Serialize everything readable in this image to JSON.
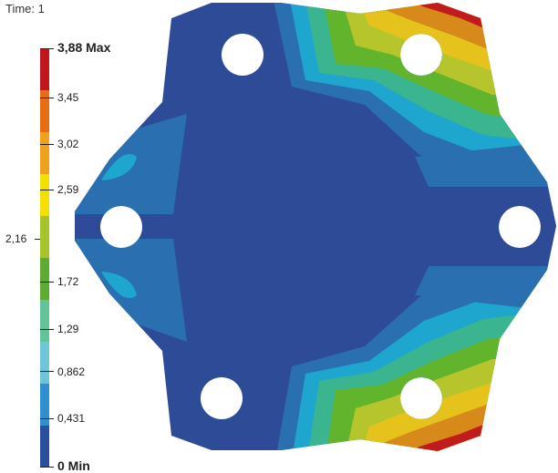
{
  "header": {
    "time_label": "Time: 1"
  },
  "legend": {
    "max_label": "3,88 Max",
    "min_label": "0 Min",
    "mid_label": "2,16",
    "levels": [
      "3,45",
      "3,02",
      "2,59",
      "1,72",
      "1,29",
      "0,862",
      "0,431"
    ],
    "colors": [
      "#c1161d",
      "#e86d12",
      "#f0a11a",
      "#f2e000",
      "#a7c42a",
      "#5eab34",
      "#62c29a",
      "#6ec5d6",
      "#2f8fd0",
      "#2b4e9e"
    ]
  },
  "part": {
    "colors": {
      "dark_blue": "#2e4b98",
      "mid_blue": "#2a6fb0",
      "cyan": "#1ea6cf",
      "teal": "#3bb58f",
      "green": "#62b42d",
      "yellow_green": "#b7c52d",
      "yellow": "#e6c21d",
      "orange": "#d78a19",
      "red": "#c21b1c"
    }
  }
}
